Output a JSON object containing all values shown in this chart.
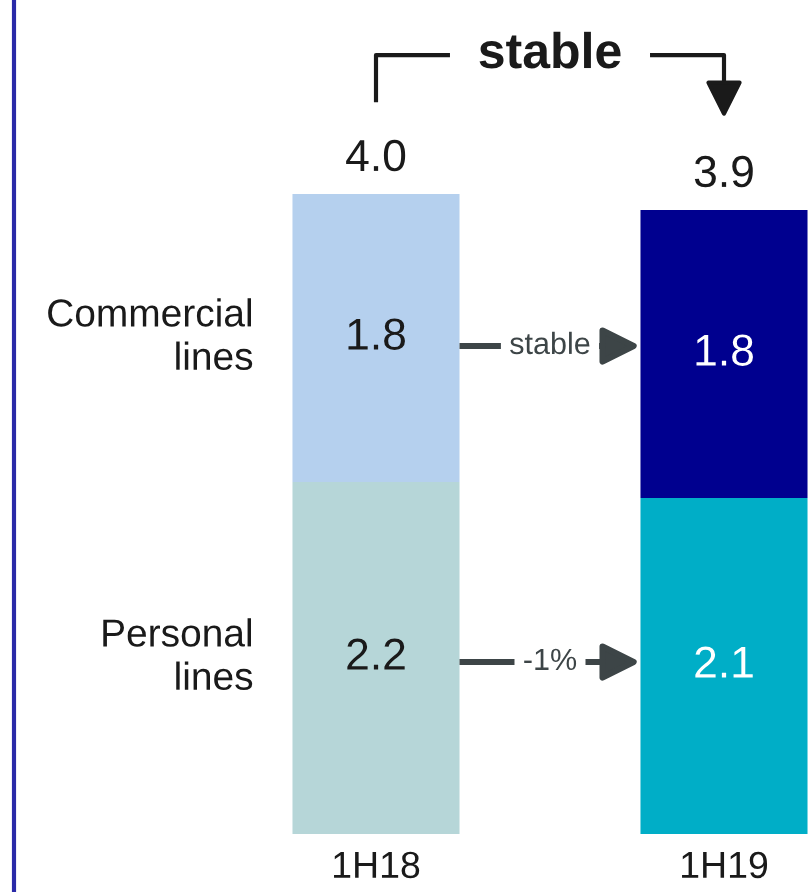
{
  "chart_data": {
    "type": "bar",
    "stacked": true,
    "categories": [
      "1H18",
      "1H19"
    ],
    "series": [
      {
        "name": "Personal lines",
        "colors": [
          "#b6d6d8",
          "#00aec7"
        ],
        "values": [
          2.2,
          2.1
        ]
      },
      {
        "name": "Commercial lines",
        "colors": [
          "#b5d0ee",
          "#00008f"
        ],
        "values": [
          1.8,
          1.8
        ]
      }
    ],
    "data_labels": true,
    "totals": [
      "4.0",
      "3.9"
    ],
    "tick_labels": "x",
    "annotations": [
      "stable",
      "stable",
      "-1%"
    ]
  }
}
